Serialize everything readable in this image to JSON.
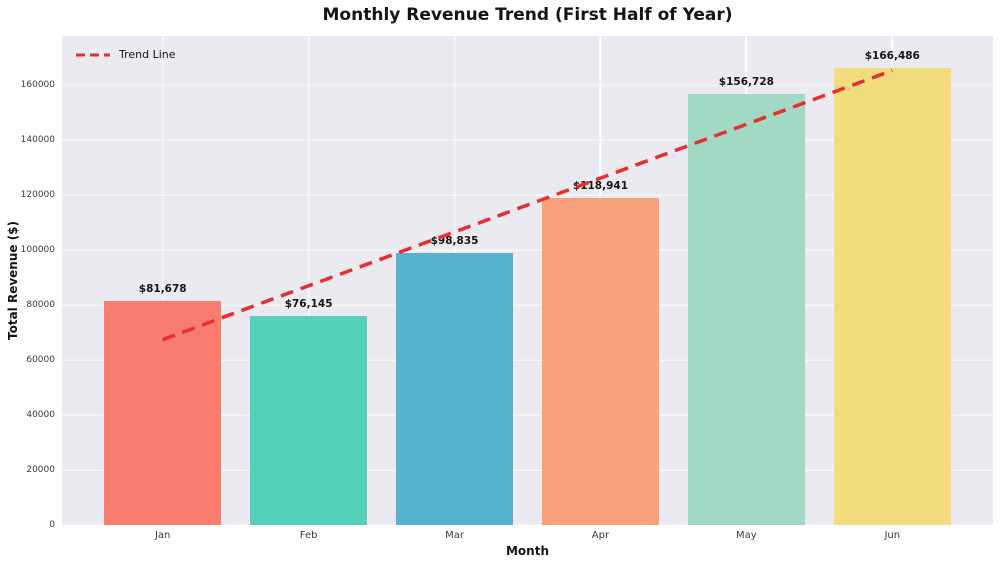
{
  "chart_data": {
    "type": "bar",
    "title": "Monthly Revenue Trend (First Half of Year)",
    "xlabel": "Month",
    "ylabel": "Total Revenue ($)",
    "categories": [
      "Jan",
      "Feb",
      "Mar",
      "Apr",
      "May",
      "Jun"
    ],
    "values": [
      81678,
      76145,
      98835,
      118941,
      156728,
      166486
    ],
    "bar_labels": [
      "$81,678",
      "$76,145",
      "$98,835",
      "$118,941",
      "$156,728",
      "$166,486"
    ],
    "bar_colors": [
      "#f87d70",
      "#55d0bb",
      "#54b4d0",
      "#f9a17d",
      "#a2d9c5",
      "#f2dc7e"
    ],
    "yticks": [
      0,
      20000,
      40000,
      60000,
      80000,
      100000,
      120000,
      140000,
      160000
    ],
    "ylim": [
      0,
      178000
    ],
    "xlim": [
      -0.69,
      5.69
    ],
    "bar_width_units": 0.8,
    "grid": true,
    "plot_background": "#eaeaf0",
    "gridline_color": "#ffffff",
    "trend_line": {
      "label": "Trend Line",
      "color": "#e62e2e",
      "style": "dashed",
      "start_value": 67476,
      "end_value": 165461
    },
    "legend": {
      "position": "top-left",
      "entries": [
        {
          "label": "Trend Line",
          "color": "#e62e2e",
          "style": "dashed"
        }
      ]
    }
  }
}
